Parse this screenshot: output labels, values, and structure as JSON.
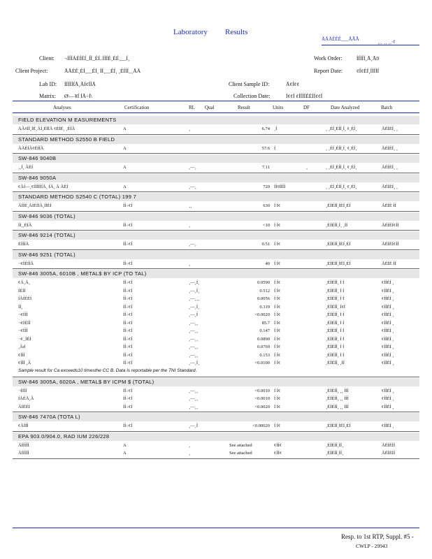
{
  "header": {
    "title_left": "Laboratory",
    "title_right": "Results",
    "top_right_code": "ÄÄÄÉÉÉ___ÄÃÃ",
    "top_right_code2": "¸¸¸ ¸¸ ¸¸·¢",
    "fields": [
      {
        "label": "Client:",
        "value": "¬ÍÍÍÁÉÍÉÍ_ÍÌ_ÉÍ..ÍÍÍÉ¸ÉÉ¸__Í¸",
        "lx": 56,
        "vx": 92,
        "y": 79
      },
      {
        "label": "Client   Project:",
        "value": "ÃÃÉÉ¸ÉÍ¸__ÉÍ¸ ÍÍ¸__ÉÍ¸ ¸ÉÍÍÍ_¸ÃÄ",
        "lx": 22,
        "vx": 92,
        "y": 97
      },
      {
        "label": "Lab   ID:",
        "value": "ÍÍÍÍÍÍÃ¸ÃÍ¢ÍÍÃ",
        "lx": 56,
        "vx": 92,
        "y": 116
      },
      {
        "label": "Matrix:",
        "value": "Ø\\—¥Í ÍÃ÷Í\\",
        "lx": 56,
        "vx": 92,
        "y": 133
      },
      {
        "label": "Work    Order:",
        "value": "ÍÍÍÍÍ¸Ã¸Ã0",
        "lx": 449,
        "vx": 510,
        "y": 79
      },
      {
        "label": "Report    Date:",
        "value": "¢Í¢ÉÍ¸ÍÍÍÍÍ",
        "lx": 449,
        "vx": 510,
        "y": 97
      },
      {
        "label": "Client    Sample    ID:",
        "value": "Ã¢Í¢¢",
        "lx": 327,
        "vx": 409,
        "y": 116
      },
      {
        "label": "Collection    Date:",
        "value": "Í¢¢Í  ¢ÍÍÍÍÉÉÍÍ¢¢Í",
        "lx": 334,
        "vx": 409,
        "y": 133
      }
    ]
  },
  "columns": [
    "Analyses",
    "Certification",
    "RL",
    "Qual",
    "Result",
    "Units",
    "DF",
    "Date    Analyzed",
    "Batch"
  ],
  "sections": [
    {
      "title": "FIELD    ELEVATION     M EASUREMENTS",
      "rows": [
        {
          "a": "ÄÃ¢ÍÍ¸ÍÉ¸ÃÍ¸ÉÍÍÃ   ¢ÉÍÉ¸ ¸ÉÍÃ",
          "cert": "A",
          "rl": "¸",
          "res": "6.74",
          "units": "¸Í",
          "df": "",
          "date": "¸ ¸ÉÍ¸ÉÍÍ¸Í¸ ¢¸ÉÍ¸",
          "batch": "ÃÉÍÉÍ¸ ¸"
        }
      ]
    },
    {
      "title": "STANDARD     METHOD   S2550       B   FIELD",
      "rows": [
        {
          "a": "ÃÃÉÍÃ¢ÉÍÍÃ",
          "cert": "A",
          "rl": "",
          "res": "57.6",
          "units": "Í",
          "df": "",
          "date": "¸ ¸ÉÍ¸ÉÍÍ¸Í¸ ¢¸ÉÍ¸",
          "batch": "ÃÉÍÉÍ¸ ¸"
        }
      ]
    },
    {
      "title": "SW-846     9040B",
      "rows": [
        {
          "a": "¸¸Í¸ ÃÉÍ",
          "cert": "A",
          "rl": "¸—¸",
          "res": "7.11",
          "units": "",
          "df": "¸",
          "date": "¸ ¸ÉÍ¸ÉÍÍ¸Í¸ ¢¸ÉÍ¸",
          "batch": "ÃÉÍÉÍ¸ ¸"
        }
      ]
    },
    {
      "title": "SW-846     9050A",
      "rows": [
        {
          "a": "¢ÃÍ—¸¢ÍÍÍÍÍÍÃ¸ ÍÃ¸ Ã   ÃÉÍ",
          "cert": "A",
          "rl": "¸—¸",
          "res": "720",
          "units": "ÍÍ¢ÍÍÍÍ",
          "df": "",
          "date": "¸ ¸ÉÍ¸ÉÍÍ¸Í¸ ¢¸ÉÍ¸",
          "batch": "ÃÉÍÉÍ¸ ¸"
        }
      ]
    },
    {
      "title": "STANDARD     METHOD   S2540       C   (TOTAL)     199  7",
      "rows": [
        {
          "a": "ÃÍÍÉ¸ÃÍÉÍÍÃ¸ÍÍÉÍ",
          "cert": "ÍÍ÷¢Í",
          "rl": "¸¸",
          "res": "630",
          "units": "Í Í¢",
          "df": "",
          "date": "¸ÉÍÉÍÍ¸ÍÉÍ¸ÉÍ",
          "batch": "ÃÉÍÉ ÍÍ"
        }
      ]
    },
    {
      "title": "SW-846     9036    (TOTAL)",
      "rows": [
        {
          "a": "ÍÍ¸¸ÉÍÃ",
          "cert": "ÍÍ÷¢Í",
          "rl": "¸",
          "res": "<10",
          "units": "Í Í¢",
          "df": "",
          "date": "¸ÉÍÉÍÍ¸Í¸ ¸ÍÍ",
          "batch": "ÃÉÍÉÍ¢ÍÍ"
        }
      ]
    },
    {
      "title": "SW-846     9214    (TOTAL)",
      "rows": [
        {
          "a": "ÉÍÍÍÃ",
          "cert": "ÍÍ÷¢Í",
          "rl": "¸—¸",
          "res": "0.51",
          "units": "Í Í¢",
          "df": "",
          "date": "¸ÉÍÉÍÍ¸ÍÉÍ¸ÉÍ",
          "batch": "ÃÉÍÉÍ¢ÍÍ"
        }
      ]
    },
    {
      "title": "SW-846     9251    (TOTAL)",
      "rows": [
        {
          "a": "¬¢ÍÉÍÍÃ",
          "cert": "ÍÍ÷¢Í",
          "rl": "¸",
          "res": "40",
          "units": "Í Í¢",
          "df": "",
          "date": "¸ÉÍÉÍÍ¸ÍÉÍ¸ÉÍ",
          "batch": "ÃÉÍÉ ÍÍ"
        }
      ]
    },
    {
      "title": "SW-846     3005A,    6010B  , METAL$     BY   ICP    (TO  TAL)",
      "rows": [
        {
          "a": "¢Ã¸Ã¸",
          "cert": "ÍÍ÷¢Í",
          "rl": "¸—¸Í¸",
          "res": "0.0590",
          "units": "Í Í¢",
          "df": "",
          "date": "¸ÉÍÉÍÍ¸ Í Í",
          "batch": "¢ÍÍÉÍ ¸"
        },
        {
          "a": "ÍÉÍÍ",
          "cert": "ÍÍ÷¢Í",
          "rl": "¸—¸Í¸",
          "res": "0.512",
          "units": "Í Í¢",
          "df": "",
          "date": "¸ÉÍÉÍÍ¸ Í Í",
          "batch": "¢ÍÍÉÍ ¸"
        },
        {
          "a": "ÍÃÍÉÉÍ",
          "cert": "ÍÍ÷¢Í",
          "rl": "¸—¸¸¸",
          "res": "0.0056",
          "units": "Í Í¢",
          "df": "",
          "date": "¸ÉÍÉÍÍ¸ Í Í",
          "batch": "¢ÍÍÉÍ ¸"
        },
        {
          "a": "ÍÍ¸",
          "cert": "ÍÍ÷¢Í",
          "rl": "¸—¸Í¸",
          "res": "0.319",
          "units": "Í Í¢",
          "df": "",
          "date": "¸ÉÍÉÍÍ¸ Í¢Í",
          "batch": "¢ÍÍÉÍ ¸"
        },
        {
          "a": "¬¢ÍÍÍ",
          "cert": "ÍÍ÷¢Í",
          "rl": "¸—¸Í",
          "res": "<0.0020",
          "units": "Í Í¢",
          "df": "",
          "date": "¸ÉÍÉÍÍ¸ Í Í",
          "batch": "¢ÍÍÉÍ ¸"
        },
        {
          "a": "¬¢ÍÉÍÍ",
          "cert": "ÍÍ÷¢Í",
          "rl": "¸—¸¸",
          "res": "85.7",
          "units": "Í Í¢",
          "df": "",
          "date": "¸ÉÍÉÍÍ¸ Í Í",
          "batch": "¢ÍÍÉÍ ¸"
        },
        {
          "a": "¬¢ÍÍÍ",
          "cert": "ÍÍ÷¢Í",
          "rl": "¸—¸¸",
          "res": "0.147",
          "units": "Í Í¢",
          "df": "",
          "date": "¸ÉÍÉÍÍ¸ Í Í",
          "batch": "¢ÍÍÉÍ ¸"
        },
        {
          "a": "¬¢_ÍÉÍ",
          "cert": "ÍÍ÷¢Í",
          "rl": "¸—¸¸",
          "res": "0.0890",
          "units": "Í Í¢",
          "df": "",
          "date": "¸ÉÍÉÍÍ¸ Í Í",
          "batch": "¢ÍÍÉÍ ¸"
        },
        {
          "a": "¸Ãd",
          "cert": "ÍÍ÷¢Í",
          "rl": "¸—¸¸",
          "res": "0.0769",
          "units": "Í Í¢",
          "df": "",
          "date": "¸ÉÍÉÍÍ¸ Í Í",
          "batch": "¢ÍÍÉÍ ¸"
        },
        {
          "a": "¢ÍÍÍ",
          "cert": "ÍÍ÷¢Í",
          "rl": "¸—¸¸",
          "res": "0.153",
          "units": "Í Í¢",
          "df": "",
          "date": "¸ÉÍÉÍÍ¸ Í Í",
          "batch": "¢ÍÍÉÍ ¸"
        },
        {
          "a": "¢ÍÍÍ ¸Ã",
          "cert": "ÍÍ÷¢Í",
          "rl": "¸—¸Í¸",
          "res": "<0.0100",
          "units": "Í Í¢",
          "df": "",
          "date": "¸ÉÍÉÍÍ¸ ¸ÍÍ",
          "batch": "¢ÍÍÉÍ ¸"
        }
      ],
      "note": "Sample   result   for  Ca  exceeds10   timesthe   CC   B.  Data  is  reportable    per the TNI  Standard."
    },
    {
      "title": "SW-846     3005A,    6020A  , METAL$     BY   ICPM $    (TOTAL)",
      "rows": [
        {
          "a": "¬ÍÍÍÍ",
          "cert": "ÍÍ÷¢Í",
          "rl": "¸—¸¸",
          "res": "<0.0010",
          "units": "Í Í¢",
          "df": "",
          "date": "¸ÉÍÉÍÍ¸ ¸¸ ÍÍÍ",
          "batch": "¢ÍÍÉÍ ¸"
        },
        {
          "a": "ÍÃÉÃ¸Ã",
          "cert": "ÍÍ÷¢Í",
          "rl": "¸—¸¸",
          "res": "<0.0010",
          "units": "Í Í¢",
          "df": "",
          "date": "¸ÉÍÉÍÍ¸ ¸¸ ÍÍÍ",
          "batch": "¢ÍÍÉÍ ¸"
        },
        {
          "a": "ÃÍÉÉÍ",
          "cert": "ÍÍ÷¢Í",
          "rl": "¸—¸¸",
          "res": "<0.0020",
          "units": "Í Í¢",
          "df": "",
          "date": "¸ÉÍÉÍÍ¸ ¸¸ ÍÍÍ",
          "batch": "¢ÍÍÉÍ ¸"
        }
      ]
    },
    {
      "title": "SW-846     7470A     (TOTA    L)",
      "rows": [
        {
          "a": "¢ÃÍÍÍ",
          "cert": "ÍÍ÷¢Í",
          "rl": "¸—¸Í",
          "res": "<0.00020",
          "units": "Í Í¢",
          "df": "",
          "date": "¸ÉÍÉÍÍ¸ÍÉÍ¸ÉÍ",
          "batch": "¢ÍÍÉÍ ¸"
        }
      ]
    },
    {
      "title": "EPA   903.0/904.0,      RAD   IUM   226/228",
      "rows": [
        {
          "a": "ÃÍÍÍÍÍ",
          "cert": "A",
          "rl": "¸",
          "res": "See      attached",
          "units": "¢ÍÍ¢",
          "df": "",
          "date": "¸ÉÍÉÍÍ¸ÍÍ¸",
          "batch": "ÃÉÍÉÍÍ"
        },
        {
          "a": "ÃÍÍÍÍÍ",
          "cert": "A",
          "rl": "¸",
          "res": "See      attached",
          "units": "¢ÍÍ¢",
          "df": "",
          "date": "¸ÉÍÉÍÍ¸ÍÍ¸",
          "batch": "ÃÉÍÉÍÍ"
        }
      ]
    }
  ],
  "footer": {
    "line1": "Resp. to 1st RTP, Suppl. #5 -",
    "line2": "CWLP - 29943"
  }
}
